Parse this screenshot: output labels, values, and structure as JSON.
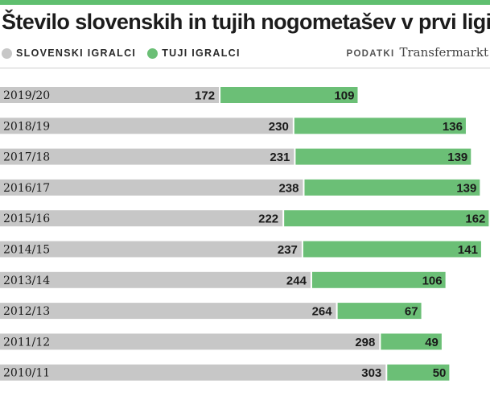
{
  "chart_data": {
    "type": "bar",
    "stacked": true,
    "orientation": "horizontal",
    "title": "Število slovenskih in tujih nogometašev v prvi ligi",
    "source_label": "PODATKI",
    "source_name": "Transfermarkt",
    "categories": [
      "2019/20",
      "2018/19",
      "2017/18",
      "2016/17",
      "2015/16",
      "2014/15",
      "2013/14",
      "2012/13",
      "2011/12",
      "2010/11"
    ],
    "series": [
      {
        "name": "SLOVENSKI IGRALCI",
        "color": "#c7c7c7",
        "values": [
          172,
          230,
          231,
          238,
          222,
          237,
          244,
          264,
          298,
          303
        ]
      },
      {
        "name": "TUJI IGRALCI",
        "color": "#6bbf76",
        "values": [
          109,
          136,
          139,
          139,
          162,
          141,
          106,
          67,
          49,
          50
        ]
      }
    ],
    "xlim": [
      0,
      385
    ],
    "legend": "top-left"
  }
}
